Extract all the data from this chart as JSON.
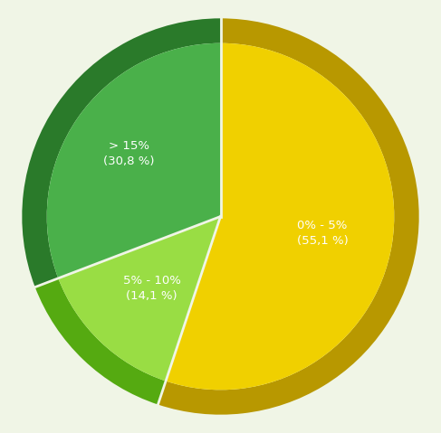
{
  "slices": [
    {
      "label": "0% - 5%\n(55,1 %)",
      "value": 55.1,
      "color": "#f0d000",
      "dark_color": "#b89800",
      "highlight_color": "#f8e84a"
    },
    {
      "label": "> 15%\n(30,8 %)",
      "value": 30.8,
      "color": "#4ab04a",
      "dark_color": "#2a7a2a",
      "highlight_color": "#70d070"
    },
    {
      "label": "5% - 10%\n(14,1 %)",
      "value": 14.1,
      "color": "#99dd44",
      "dark_color": "#55aa11",
      "highlight_color": "#bbee77"
    }
  ],
  "background_color": "#f0f5e6",
  "text_color": "#ffffff",
  "label_fontsize": 9.5,
  "start_angle": 90,
  "outer_r": 1.0,
  "ring_r": 0.875
}
